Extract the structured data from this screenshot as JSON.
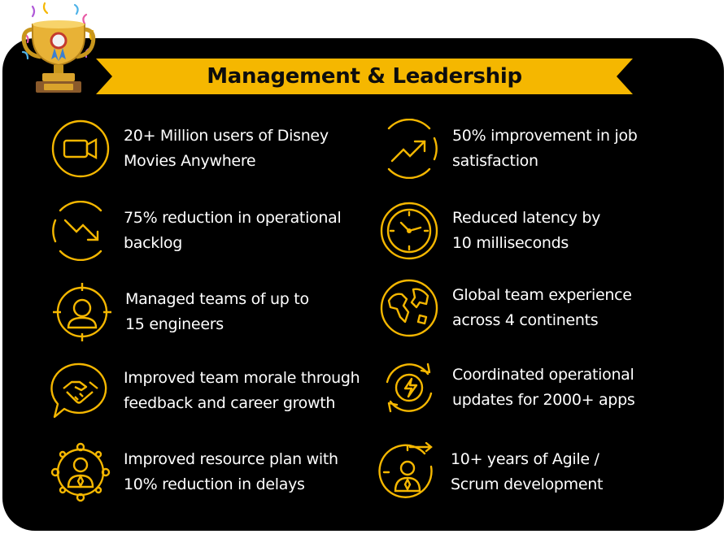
{
  "title": "Management & Leadership",
  "colors": {
    "accent": "#f5b700",
    "panel": "#000000",
    "text": "#ffffff",
    "title_text": "#0d0d0d"
  },
  "items": [
    {
      "icon": "video-camera-icon",
      "lines": [
        "20+ Million users of Disney",
        "Movies Anywhere"
      ]
    },
    {
      "icon": "trend-up-icon",
      "lines": [
        "50% improvement in job",
        "satisfaction"
      ]
    },
    {
      "icon": "trend-down-icon",
      "lines": [
        "75% reduction in operational",
        "backlog"
      ]
    },
    {
      "icon": "clock-icon",
      "lines": [
        "Reduced latency by",
        "10 milliseconds"
      ]
    },
    {
      "icon": "team-target-icon",
      "lines": [
        "Managed teams of up to",
        "15 engineers"
      ]
    },
    {
      "icon": "globe-icon",
      "lines": [
        "Global team experience",
        "across 4 continents"
      ]
    },
    {
      "icon": "handshake-icon",
      "lines": [
        "Improved team morale through",
        "feedback and career growth"
      ]
    },
    {
      "icon": "refresh-bolt-icon",
      "lines": [
        "Coordinated operational",
        "updates for 2000+ apps"
      ]
    },
    {
      "icon": "network-person-icon",
      "lines": [
        "Improved resource plan with",
        "10% reduction in delays"
      ]
    },
    {
      "icon": "stopwatch-person-icon",
      "lines": [
        "10+ years of Agile /",
        "Scrum development"
      ]
    }
  ]
}
